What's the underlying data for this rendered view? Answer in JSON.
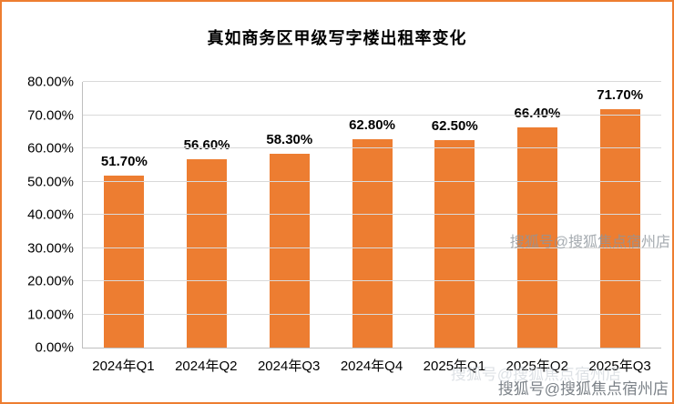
{
  "chart_data": {
    "type": "bar",
    "title": "真如商务区甲级写字楼出租率变化",
    "categories": [
      "2024年Q1",
      "2024年Q2",
      "2024年Q3",
      "2024年Q4",
      "2025年Q1",
      "2025年Q2",
      "2025年Q3"
    ],
    "values": [
      51.7,
      56.6,
      58.3,
      62.8,
      62.5,
      66.4,
      71.7
    ],
    "value_labels": [
      "51.70%",
      "56.60%",
      "58.30%",
      "62.80%",
      "62.50%",
      "66.40%",
      "71.70%"
    ],
    "xlabel": "",
    "ylabel": "",
    "ylim": [
      0,
      80
    ],
    "y_tick_step": 10,
    "y_tick_labels": [
      "0.00%",
      "10.00%",
      "20.00%",
      "30.00%",
      "40.00%",
      "50.00%",
      "60.00%",
      "70.00%",
      "80.00%"
    ],
    "grid": true,
    "legend": "none",
    "bar_color": "#ED7D31",
    "border_color": "#ED7D31",
    "gridline_color": "#d9d9d9"
  },
  "watermarks": {
    "mid": "搜狐号@搜狐焦点宿州店",
    "faint": "搜狐号@搜狐焦点宿州店",
    "bottom": "搜狐号@搜狐焦点宿州店"
  }
}
